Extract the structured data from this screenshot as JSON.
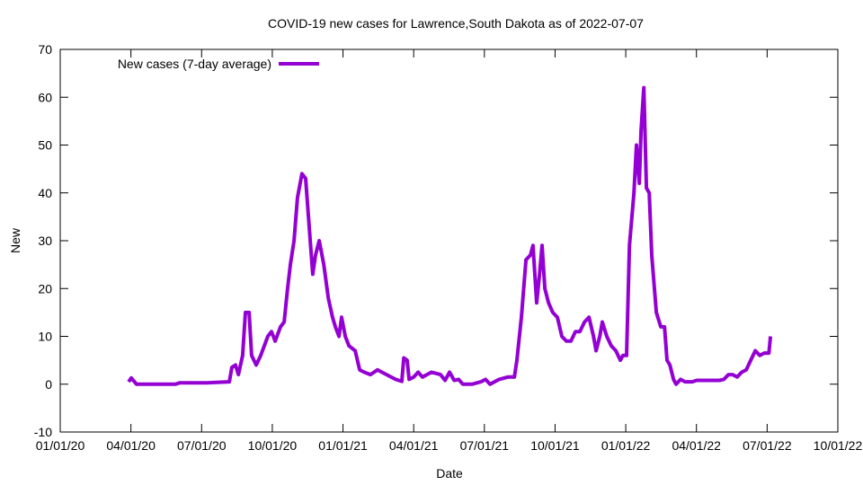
{
  "chart_data": {
    "type": "line",
    "title": "COVID-19 new cases for Lawrence,South Dakota as of 2022-07-07",
    "xlabel": "Date",
    "ylabel": "New",
    "ylim": [
      -10,
      70
    ],
    "xlim_decimal_year": [
      2020.0,
      2022.75
    ],
    "y_ticks": [
      "-10",
      "0",
      "10",
      "20",
      "30",
      "40",
      "50",
      "60",
      "70"
    ],
    "x_ticks": [
      "01/01/20",
      "04/01/20",
      "07/01/20",
      "10/01/20",
      "01/01/21",
      "04/01/21",
      "07/01/21",
      "10/01/21",
      "01/01/22",
      "04/01/22",
      "07/01/22",
      "10/01/22"
    ],
    "grid": false,
    "legend_placement": "top-left",
    "series": [
      {
        "name": "New cases (7-day average)",
        "color": "#9400d3",
        "x_unit": "decimal year",
        "points": [
          [
            2020.242,
            0.5
          ],
          [
            2020.251,
            1.3
          ],
          [
            2020.27,
            0
          ],
          [
            2020.407,
            0
          ],
          [
            2020.423,
            0.3
          ],
          [
            2020.518,
            0.3
          ],
          [
            2020.598,
            0.5
          ],
          [
            2020.607,
            3.5
          ],
          [
            2020.62,
            4
          ],
          [
            2020.63,
            2
          ],
          [
            2020.645,
            6
          ],
          [
            2020.655,
            15
          ],
          [
            2020.668,
            15
          ],
          [
            2020.677,
            6
          ],
          [
            2020.693,
            4
          ],
          [
            2020.709,
            6
          ],
          [
            2020.734,
            10
          ],
          [
            2020.747,
            11
          ],
          [
            2020.76,
            9
          ],
          [
            2020.779,
            12
          ],
          [
            2020.792,
            13
          ],
          [
            2020.804,
            20
          ],
          [
            2020.814,
            25
          ],
          [
            2020.827,
            30
          ],
          [
            2020.839,
            39
          ],
          [
            2020.855,
            44
          ],
          [
            2020.868,
            43
          ],
          [
            2020.884,
            30
          ],
          [
            2020.893,
            23
          ],
          [
            2020.903,
            27
          ],
          [
            2020.916,
            30
          ],
          [
            2020.932,
            25
          ],
          [
            2020.948,
            18
          ],
          [
            2020.963,
            14
          ],
          [
            2020.973,
            12
          ],
          [
            2020.986,
            10
          ],
          [
            2020.995,
            14
          ],
          [
            2021.008,
            10
          ],
          [
            2021.021,
            8
          ],
          [
            2021.043,
            7
          ],
          [
            2021.059,
            3
          ],
          [
            2021.075,
            2.5
          ],
          [
            2021.097,
            2
          ],
          [
            2021.122,
            3
          ],
          [
            2021.154,
            2
          ],
          [
            2021.186,
            1
          ],
          [
            2021.208,
            0.6
          ],
          [
            2021.215,
            5.5
          ],
          [
            2021.227,
            5
          ],
          [
            2021.234,
            1
          ],
          [
            2021.25,
            1.5
          ],
          [
            2021.266,
            2.5
          ],
          [
            2021.281,
            1.5
          ],
          [
            2021.313,
            2.5
          ],
          [
            2021.345,
            2
          ],
          [
            2021.361,
            0.8
          ],
          [
            2021.377,
            2.5
          ],
          [
            2021.393,
            0.8
          ],
          [
            2021.409,
            1
          ],
          [
            2021.424,
            0
          ],
          [
            2021.456,
            0
          ],
          [
            2021.488,
            0.5
          ],
          [
            2021.504,
            1
          ],
          [
            2021.52,
            0
          ],
          [
            2021.552,
            1
          ],
          [
            2021.583,
            1.5
          ],
          [
            2021.606,
            1.5
          ],
          [
            2021.615,
            5
          ],
          [
            2021.631,
            14
          ],
          [
            2021.647,
            26
          ],
          [
            2021.663,
            27
          ],
          [
            2021.672,
            29
          ],
          [
            2021.685,
            17
          ],
          [
            2021.695,
            23
          ],
          [
            2021.704,
            29
          ],
          [
            2021.714,
            20
          ],
          [
            2021.727,
            17
          ],
          [
            2021.742,
            15
          ],
          [
            2021.758,
            14
          ],
          [
            2021.774,
            10
          ],
          [
            2021.79,
            9
          ],
          [
            2021.806,
            9
          ],
          [
            2021.822,
            11
          ],
          [
            2021.838,
            11
          ],
          [
            2021.854,
            13
          ],
          [
            2021.87,
            14
          ],
          [
            2021.886,
            10
          ],
          [
            2021.895,
            7
          ],
          [
            2021.908,
            10
          ],
          [
            2021.917,
            13
          ],
          [
            2021.933,
            10
          ],
          [
            2021.949,
            8
          ],
          [
            2021.965,
            7
          ],
          [
            2021.981,
            5
          ],
          [
            2021.99,
            6
          ],
          [
            2022.003,
            6
          ],
          [
            2022.013,
            29
          ],
          [
            2022.029,
            40
          ],
          [
            2022.038,
            50
          ],
          [
            2022.048,
            42
          ],
          [
            2022.054,
            53
          ],
          [
            2022.064,
            62
          ],
          [
            2022.073,
            41
          ],
          [
            2022.083,
            40
          ],
          [
            2022.092,
            27
          ],
          [
            2022.108,
            15
          ],
          [
            2022.124,
            12
          ],
          [
            2022.137,
            12
          ],
          [
            2022.146,
            5
          ],
          [
            2022.156,
            4
          ],
          [
            2022.169,
            1
          ],
          [
            2022.178,
            0
          ],
          [
            2022.194,
            1
          ],
          [
            2022.21,
            0.5
          ],
          [
            2022.235,
            0.5
          ],
          [
            2022.251,
            0.8
          ],
          [
            2022.331,
            0.8
          ],
          [
            2022.347,
            1
          ],
          [
            2022.363,
            2
          ],
          [
            2022.378,
            2
          ],
          [
            2022.394,
            1.5
          ],
          [
            2022.41,
            2.5
          ],
          [
            2022.426,
            3
          ],
          [
            2022.442,
            5
          ],
          [
            2022.458,
            7
          ],
          [
            2022.474,
            6
          ],
          [
            2022.49,
            6.5
          ],
          [
            2022.506,
            6.5
          ],
          [
            2022.512,
            10
          ]
        ]
      }
    ]
  }
}
